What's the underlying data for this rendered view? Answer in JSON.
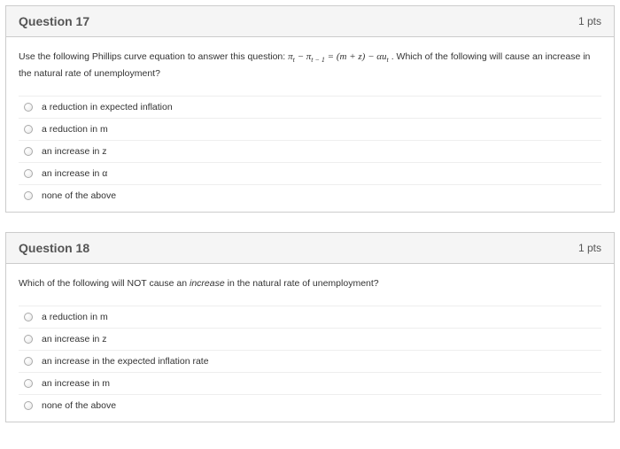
{
  "card_border_color": "#cccccc",
  "header_bg": "#f5f5f5",
  "row_border": "#eeeeee",
  "text_color": "#333333",
  "title_color": "#555555",
  "questions": [
    {
      "title": "Question 17",
      "points": "1 pts",
      "prompt_pre": "Use the following Phillips curve equation to answer this question: ",
      "equation_html": "π<sub>t</sub> − π<sub>t − 1</sub> = (m + z) − αu<sub>t</sub>",
      "prompt_post": " . Which of the following will cause an increase in the natural rate of unemployment?",
      "options": [
        "a reduction in expected inflation",
        "a reduction in m",
        "an increase in z",
        "an increase in α",
        "none of the above"
      ]
    },
    {
      "title": "Question 18",
      "points": "1 pts",
      "prompt_pre": "Which of the following will NOT cause an ",
      "emphasis": "increase",
      "prompt_post": " in the natural rate of unemployment?",
      "options": [
        "a reduction in m",
        "an increase in z",
        "an increase in the expected inflation rate",
        "an increase in m",
        "none of the above"
      ]
    }
  ]
}
